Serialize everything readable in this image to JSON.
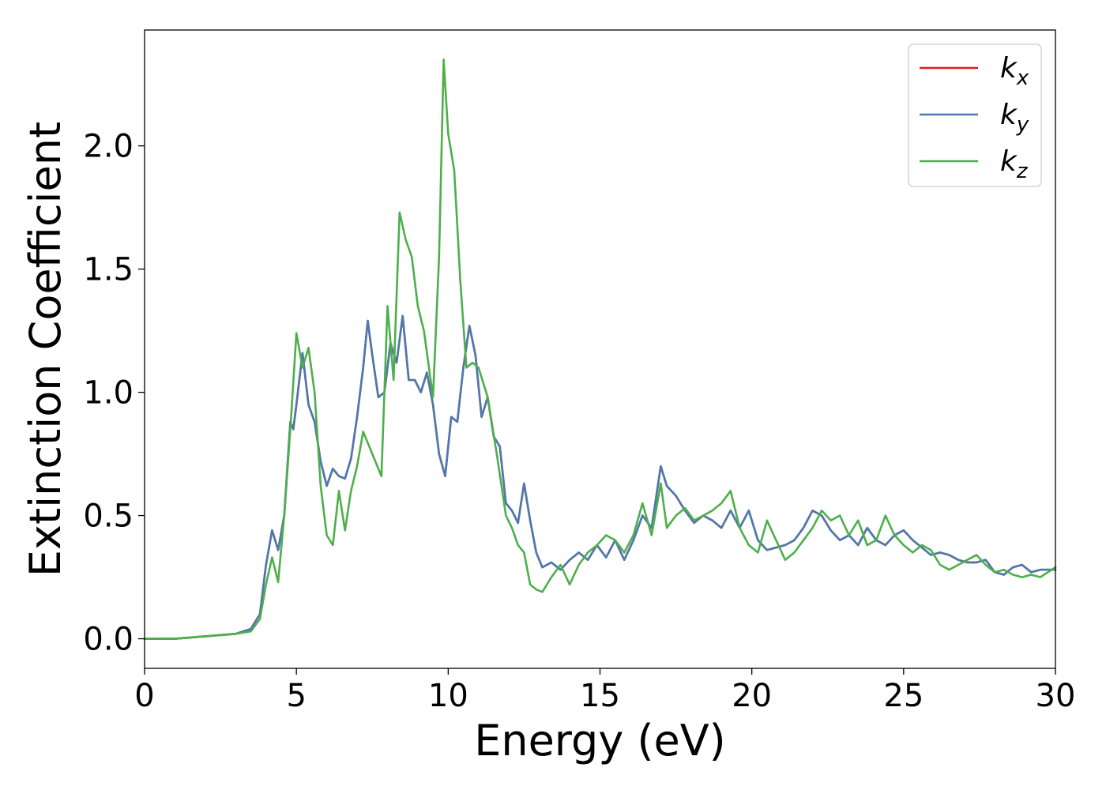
{
  "chart_data": {
    "type": "line",
    "title": "",
    "xlabel": "Energy (eV)",
    "ylabel": "Extinction Coefficient",
    "xlim": [
      0,
      30
    ],
    "ylim": [
      -0.12,
      2.47
    ],
    "xticks": [
      0,
      5,
      10,
      15,
      20,
      25,
      30
    ],
    "xtick_labels": [
      "0",
      "5",
      "10",
      "15",
      "20",
      "25",
      "30"
    ],
    "yticks": [
      0.0,
      0.5,
      1.0,
      1.5,
      2.0
    ],
    "ytick_labels": [
      "0.0",
      "0.5",
      "1.0",
      "1.5",
      "2.0"
    ],
    "grid": false,
    "legend_position": "top-right",
    "series": [
      {
        "name": "k_x",
        "legend_base": "k",
        "legend_sub": "x",
        "color": "#e41a1c",
        "x": [
          0,
          1,
          2,
          3,
          3.5,
          3.8,
          4.0,
          4.2,
          4.4,
          4.6,
          4.8,
          4.9,
          5.0,
          5.2,
          5.4,
          5.6,
          5.8,
          6.0,
          6.2,
          6.4,
          6.6,
          6.8,
          7.0,
          7.2,
          7.35,
          7.5,
          7.7,
          7.9,
          8.1,
          8.3,
          8.5,
          8.7,
          8.9,
          9.1,
          9.3,
          9.5,
          9.7,
          9.9,
          10.1,
          10.3,
          10.5,
          10.7,
          10.9,
          11.1,
          11.3,
          11.5,
          11.7,
          11.9,
          12.1,
          12.3,
          12.5,
          12.7,
          12.9,
          13.1,
          13.4,
          13.7,
          14.0,
          14.3,
          14.6,
          14.9,
          15.2,
          15.5,
          15.8,
          16.1,
          16.4,
          16.7,
          17.0,
          17.2,
          17.5,
          17.8,
          18.1,
          18.4,
          18.7,
          19.0,
          19.3,
          19.6,
          19.9,
          20.2,
          20.5,
          20.8,
          21.1,
          21.4,
          21.7,
          22.0,
          22.3,
          22.6,
          22.9,
          23.2,
          23.5,
          23.8,
          24.1,
          24.4,
          24.7,
          25.0,
          25.3,
          25.6,
          25.9,
          26.2,
          26.5,
          26.8,
          27.1,
          27.4,
          27.7,
          28.0,
          28.3,
          28.6,
          28.9,
          29.2,
          29.5,
          30.0
        ],
        "values": [
          0.0,
          0.0,
          0.01,
          0.02,
          0.04,
          0.1,
          0.3,
          0.44,
          0.36,
          0.5,
          0.88,
          0.85,
          0.95,
          1.16,
          0.95,
          0.88,
          0.72,
          0.62,
          0.69,
          0.66,
          0.65,
          0.73,
          0.9,
          1.1,
          1.29,
          1.15,
          0.98,
          1.0,
          1.2,
          1.12,
          1.31,
          1.05,
          1.05,
          1.0,
          1.08,
          0.95,
          0.75,
          0.66,
          0.9,
          0.88,
          1.1,
          1.27,
          1.15,
          0.9,
          0.98,
          0.82,
          0.78,
          0.55,
          0.52,
          0.47,
          0.63,
          0.48,
          0.35,
          0.29,
          0.31,
          0.28,
          0.32,
          0.35,
          0.32,
          0.38,
          0.33,
          0.4,
          0.32,
          0.4,
          0.5,
          0.45,
          0.7,
          0.62,
          0.58,
          0.52,
          0.47,
          0.5,
          0.48,
          0.45,
          0.52,
          0.45,
          0.52,
          0.4,
          0.36,
          0.37,
          0.38,
          0.4,
          0.45,
          0.52,
          0.5,
          0.44,
          0.4,
          0.42,
          0.38,
          0.45,
          0.4,
          0.38,
          0.42,
          0.44,
          0.4,
          0.37,
          0.34,
          0.35,
          0.34,
          0.32,
          0.31,
          0.31,
          0.32,
          0.27,
          0.26,
          0.29,
          0.3,
          0.27,
          0.28,
          0.28
        ]
      },
      {
        "name": "k_y",
        "legend_base": "k",
        "legend_sub": "y",
        "color": "#4a7ab0",
        "x": [
          0,
          1,
          2,
          3,
          3.5,
          3.8,
          4.0,
          4.2,
          4.4,
          4.6,
          4.8,
          4.9,
          5.0,
          5.2,
          5.4,
          5.6,
          5.8,
          6.0,
          6.2,
          6.4,
          6.6,
          6.8,
          7.0,
          7.2,
          7.35,
          7.5,
          7.7,
          7.9,
          8.1,
          8.3,
          8.5,
          8.7,
          8.9,
          9.1,
          9.3,
          9.5,
          9.7,
          9.9,
          10.1,
          10.3,
          10.5,
          10.7,
          10.9,
          11.1,
          11.3,
          11.5,
          11.7,
          11.9,
          12.1,
          12.3,
          12.5,
          12.7,
          12.9,
          13.1,
          13.4,
          13.7,
          14.0,
          14.3,
          14.6,
          14.9,
          15.2,
          15.5,
          15.8,
          16.1,
          16.4,
          16.7,
          17.0,
          17.2,
          17.5,
          17.8,
          18.1,
          18.4,
          18.7,
          19.0,
          19.3,
          19.6,
          19.9,
          20.2,
          20.5,
          20.8,
          21.1,
          21.4,
          21.7,
          22.0,
          22.3,
          22.6,
          22.9,
          23.2,
          23.5,
          23.8,
          24.1,
          24.4,
          24.7,
          25.0,
          25.3,
          25.6,
          25.9,
          26.2,
          26.5,
          26.8,
          27.1,
          27.4,
          27.7,
          28.0,
          28.3,
          28.6,
          28.9,
          29.2,
          29.5,
          30.0
        ],
        "values": [
          0.0,
          0.0,
          0.01,
          0.02,
          0.04,
          0.1,
          0.3,
          0.44,
          0.36,
          0.5,
          0.88,
          0.85,
          0.95,
          1.16,
          0.95,
          0.88,
          0.72,
          0.62,
          0.69,
          0.66,
          0.65,
          0.73,
          0.9,
          1.1,
          1.29,
          1.15,
          0.98,
          1.0,
          1.2,
          1.12,
          1.31,
          1.05,
          1.05,
          1.0,
          1.08,
          0.95,
          0.75,
          0.66,
          0.9,
          0.88,
          1.1,
          1.27,
          1.15,
          0.9,
          0.98,
          0.82,
          0.78,
          0.55,
          0.52,
          0.47,
          0.63,
          0.48,
          0.35,
          0.29,
          0.31,
          0.28,
          0.32,
          0.35,
          0.32,
          0.38,
          0.33,
          0.4,
          0.32,
          0.4,
          0.5,
          0.45,
          0.7,
          0.62,
          0.58,
          0.52,
          0.47,
          0.5,
          0.48,
          0.45,
          0.52,
          0.45,
          0.52,
          0.4,
          0.36,
          0.37,
          0.38,
          0.4,
          0.45,
          0.52,
          0.5,
          0.44,
          0.4,
          0.42,
          0.38,
          0.45,
          0.4,
          0.38,
          0.42,
          0.44,
          0.4,
          0.37,
          0.34,
          0.35,
          0.34,
          0.32,
          0.31,
          0.31,
          0.32,
          0.27,
          0.26,
          0.29,
          0.3,
          0.27,
          0.28,
          0.28
        ]
      },
      {
        "name": "k_z",
        "legend_base": "k",
        "legend_sub": "z",
        "color": "#4daf4a",
        "x": [
          0,
          1,
          2,
          3,
          3.5,
          3.8,
          4.0,
          4.2,
          4.4,
          4.6,
          4.8,
          5.0,
          5.2,
          5.4,
          5.6,
          5.8,
          6.0,
          6.2,
          6.4,
          6.6,
          6.8,
          7.0,
          7.2,
          7.5,
          7.8,
          8.0,
          8.2,
          8.4,
          8.6,
          8.8,
          9.0,
          9.2,
          9.5,
          9.7,
          9.85,
          10.0,
          10.2,
          10.4,
          10.6,
          10.8,
          11.0,
          11.3,
          11.6,
          11.9,
          12.1,
          12.3,
          12.5,
          12.7,
          12.9,
          13.1,
          13.4,
          13.7,
          14.0,
          14.3,
          14.6,
          14.9,
          15.2,
          15.5,
          15.8,
          16.1,
          16.4,
          16.7,
          17.0,
          17.2,
          17.5,
          17.8,
          18.1,
          18.4,
          18.7,
          19.0,
          19.3,
          19.6,
          19.9,
          20.2,
          20.5,
          20.8,
          21.1,
          21.4,
          21.7,
          22.0,
          22.3,
          22.6,
          22.9,
          23.2,
          23.5,
          23.8,
          24.1,
          24.4,
          24.7,
          25.0,
          25.3,
          25.6,
          25.9,
          26.2,
          26.5,
          26.8,
          27.1,
          27.4,
          27.7,
          28.0,
          28.3,
          28.6,
          28.9,
          29.2,
          29.5,
          30.0
        ],
        "values": [
          0.0,
          0.0,
          0.01,
          0.02,
          0.03,
          0.08,
          0.22,
          0.33,
          0.23,
          0.5,
          0.85,
          1.24,
          1.1,
          1.18,
          1.0,
          0.62,
          0.42,
          0.38,
          0.6,
          0.44,
          0.6,
          0.7,
          0.84,
          0.75,
          0.66,
          1.35,
          1.05,
          1.73,
          1.62,
          1.55,
          1.35,
          1.25,
          0.98,
          1.55,
          2.35,
          2.05,
          1.9,
          1.45,
          1.1,
          1.12,
          1.1,
          0.98,
          0.75,
          0.5,
          0.45,
          0.38,
          0.35,
          0.22,
          0.2,
          0.19,
          0.25,
          0.3,
          0.22,
          0.3,
          0.35,
          0.38,
          0.42,
          0.4,
          0.35,
          0.42,
          0.55,
          0.42,
          0.63,
          0.45,
          0.5,
          0.53,
          0.48,
          0.5,
          0.52,
          0.55,
          0.6,
          0.45,
          0.38,
          0.35,
          0.48,
          0.4,
          0.32,
          0.35,
          0.4,
          0.45,
          0.52,
          0.48,
          0.5,
          0.42,
          0.48,
          0.38,
          0.4,
          0.5,
          0.42,
          0.38,
          0.35,
          0.38,
          0.36,
          0.3,
          0.28,
          0.3,
          0.32,
          0.34,
          0.3,
          0.27,
          0.28,
          0.26,
          0.25,
          0.26,
          0.25,
          0.29
        ]
      }
    ]
  }
}
